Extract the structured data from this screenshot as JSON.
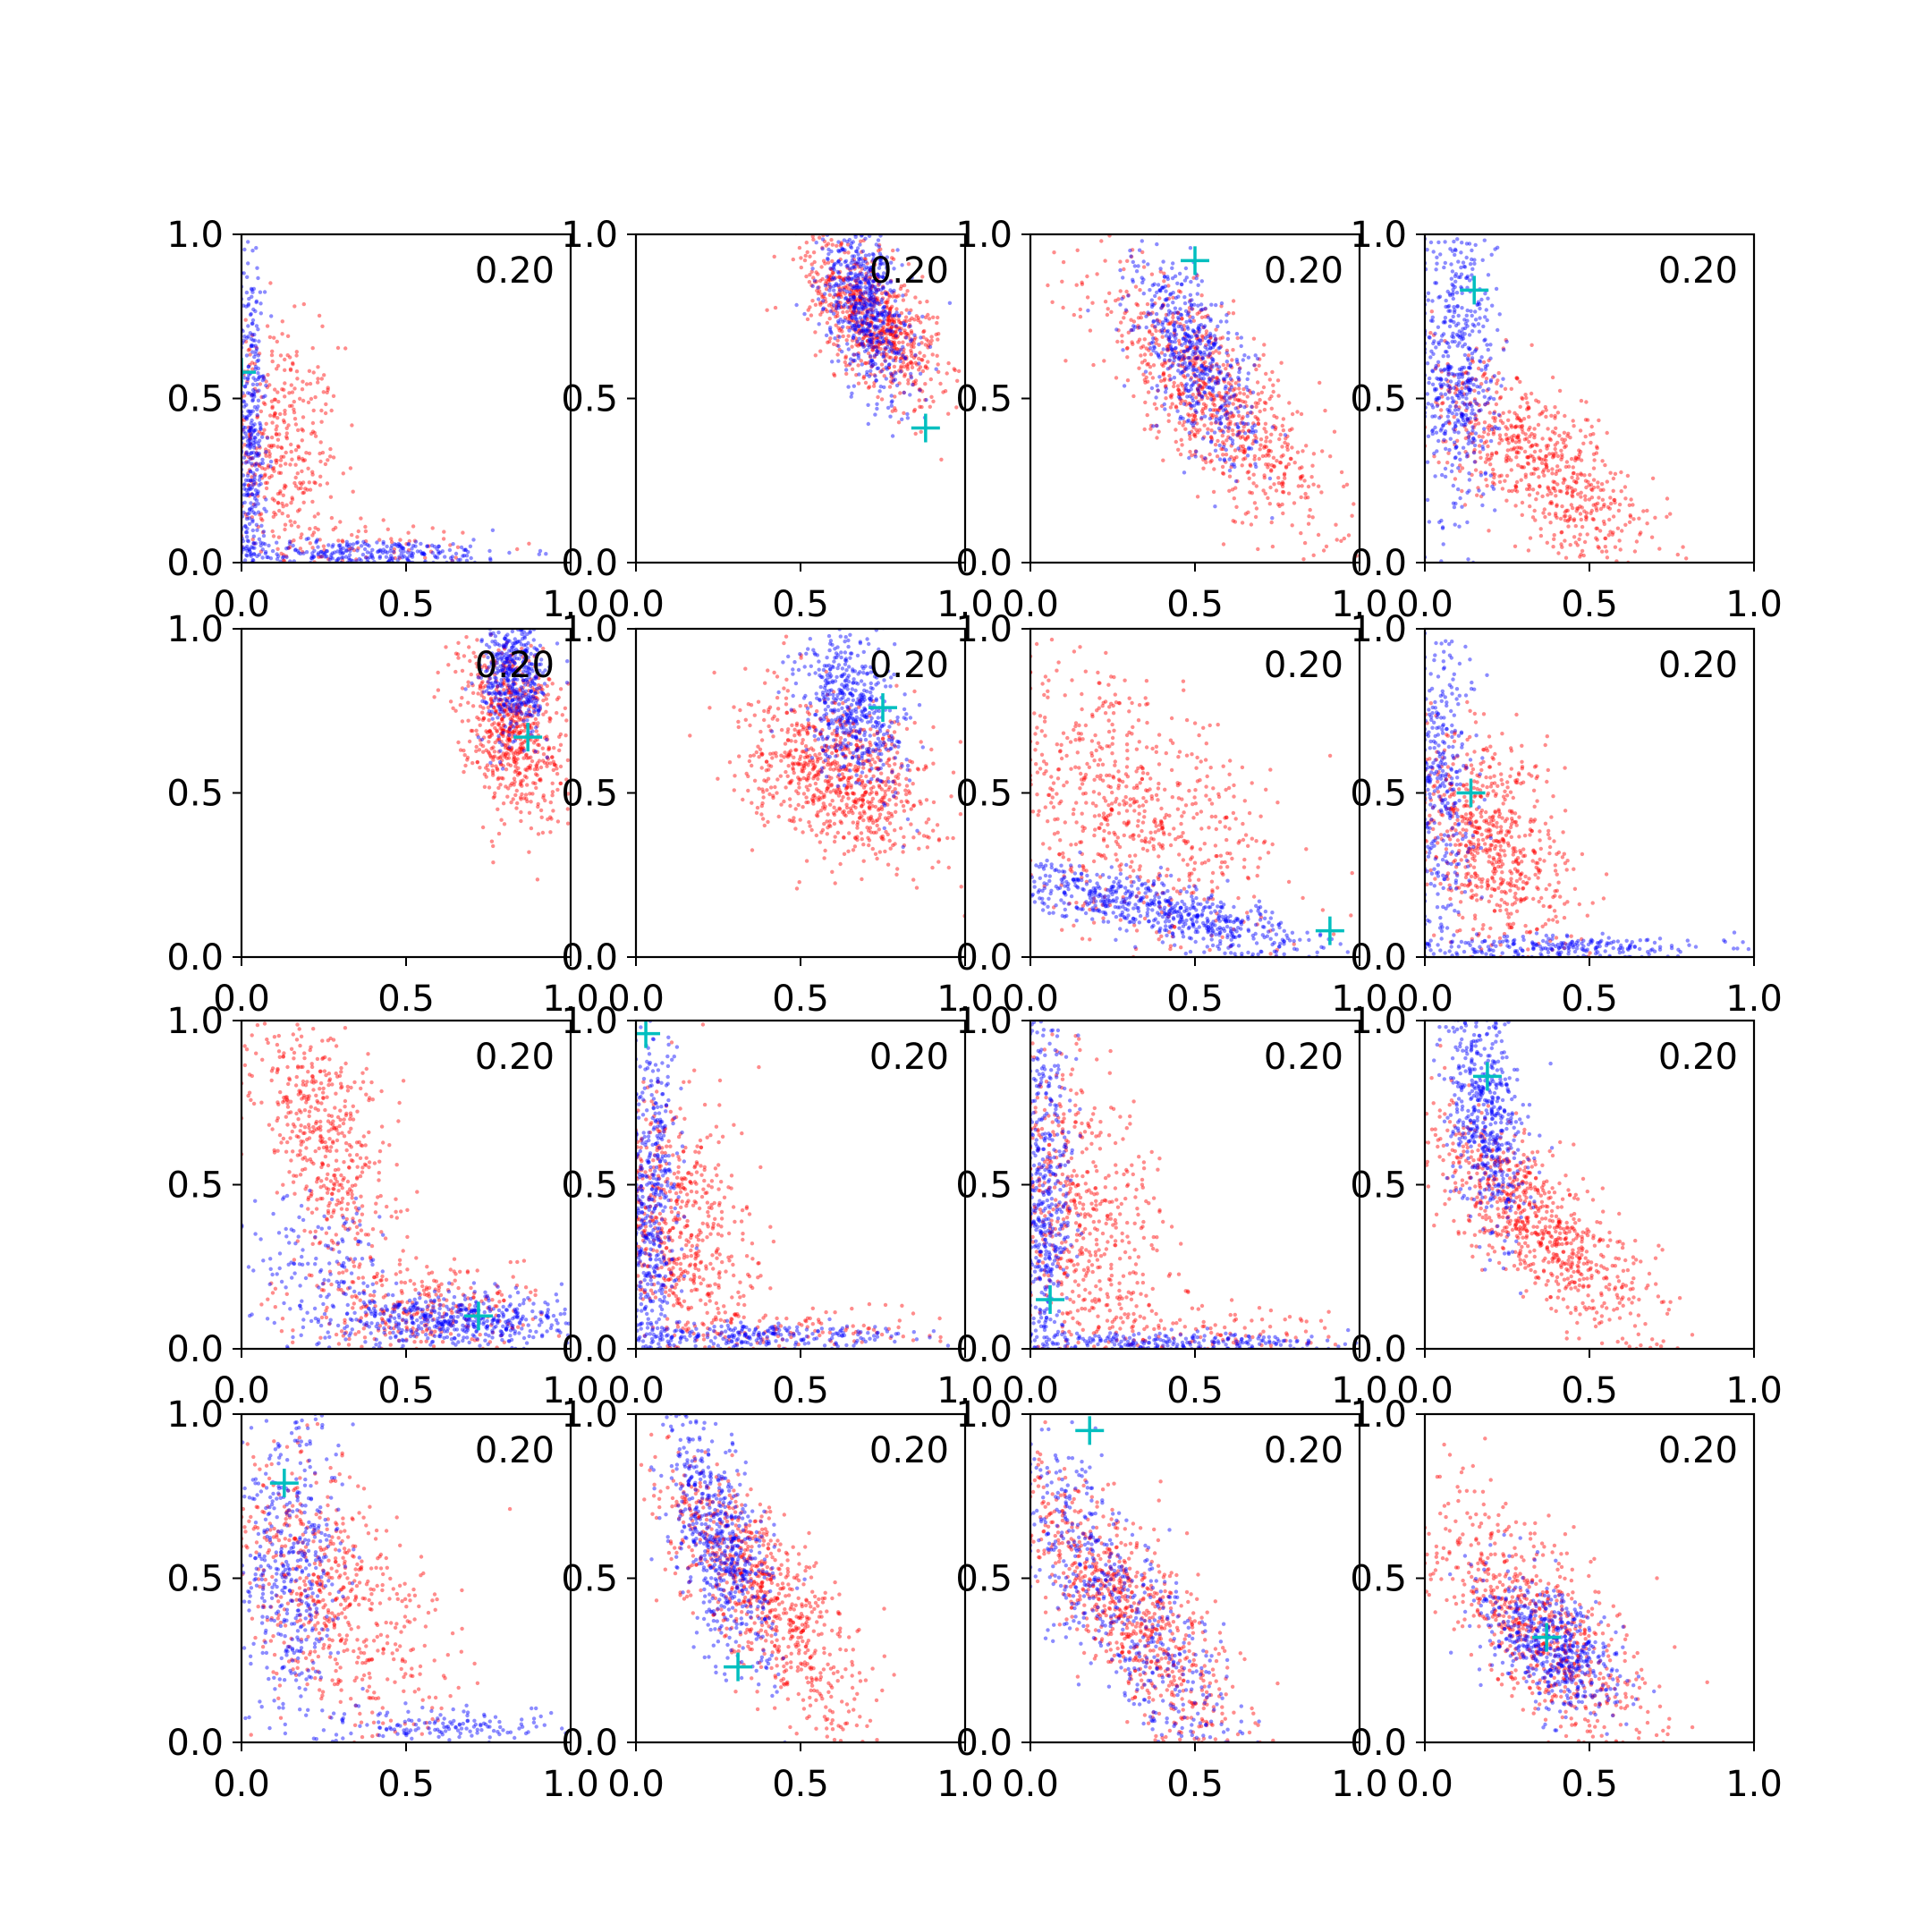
{
  "chart_data": {
    "type": "scatter",
    "layout": "4x4 grid of scatter subplots",
    "xlim": [
      0,
      1
    ],
    "ylim": [
      0,
      1
    ],
    "xticks": [
      "0.0",
      "0.5",
      "1.0"
    ],
    "yticks": [
      "0.0",
      "0.5",
      "1.0"
    ],
    "grid": false,
    "legend": "none",
    "colors": {
      "set_a": "#ff0000",
      "set_b": "#0000ff",
      "marker": "#00bfbf"
    },
    "panels": [
      {
        "annotation": "0.20",
        "marker": {
          "x": 0.0,
          "y": 0.58
        },
        "red": [
          {
            "x": 0.1,
            "y": 0.35,
            "sx": 0.1,
            "sy": 0.2,
            "rho": -0.2,
            "n": 450
          },
          {
            "x": 0.45,
            "y": 0.05,
            "sx": 0.22,
            "sy": 0.04,
            "n": 60
          }
        ],
        "blue": [
          {
            "x": 0.03,
            "y": 0.35,
            "sx": 0.02,
            "sy": 0.3,
            "n": 380
          },
          {
            "x": 0.35,
            "y": 0.03,
            "sx": 0.25,
            "sy": 0.02,
            "n": 300
          }
        ]
      },
      {
        "annotation": "0.20",
        "marker": {
          "x": 0.88,
          "y": 0.41
        },
        "red": [
          {
            "x": 0.72,
            "y": 0.74,
            "sx": 0.1,
            "sy": 0.12,
            "rho": -0.6,
            "n": 750
          }
        ],
        "blue": [
          {
            "x": 0.7,
            "y": 0.78,
            "sx": 0.07,
            "sy": 0.14,
            "rho": -0.5,
            "n": 600
          }
        ]
      },
      {
        "annotation": "0.20",
        "marker": {
          "x": 0.5,
          "y": 0.92
        },
        "red": [
          {
            "x": 0.55,
            "y": 0.5,
            "sx": 0.18,
            "sy": 0.2,
            "rho": -0.8,
            "n": 800
          }
        ],
        "blue": [
          {
            "x": 0.5,
            "y": 0.62,
            "sx": 0.09,
            "sy": 0.15,
            "rho": -0.6,
            "n": 550
          }
        ]
      },
      {
        "annotation": "0.20",
        "marker": {
          "x": 0.15,
          "y": 0.83
        },
        "red": [
          {
            "x": 0.35,
            "y": 0.3,
            "sx": 0.18,
            "sy": 0.17,
            "rho": -0.75,
            "n": 700
          }
        ],
        "blue": [
          {
            "x": 0.1,
            "y": 0.6,
            "sx": 0.06,
            "sy": 0.25,
            "n": 550
          }
        ]
      },
      {
        "annotation": "0.20",
        "marker": {
          "x": 0.87,
          "y": 0.67
        },
        "red": [
          {
            "x": 0.82,
            "y": 0.7,
            "sx": 0.08,
            "sy": 0.13,
            "rho": -0.3,
            "n": 650
          }
        ],
        "blue": [
          {
            "x": 0.83,
            "y": 0.85,
            "sx": 0.05,
            "sy": 0.1,
            "n": 450
          }
        ]
      },
      {
        "annotation": "0.20",
        "marker": {
          "x": 0.75,
          "y": 0.76
        },
        "red": [
          {
            "x": 0.62,
            "y": 0.55,
            "sx": 0.14,
            "sy": 0.12,
            "rho": -0.3,
            "n": 800
          }
        ],
        "blue": [
          {
            "x": 0.66,
            "y": 0.76,
            "sx": 0.08,
            "sy": 0.12,
            "rho": -0.3,
            "n": 500
          }
        ]
      },
      {
        "annotation": "0.20",
        "marker": {
          "x": 0.91,
          "y": 0.08
        },
        "red": [
          {
            "x": 0.3,
            "y": 0.45,
            "sx": 0.22,
            "sy": 0.22,
            "rho": -0.5,
            "n": 700
          }
        ],
        "blue": [
          {
            "x": 0.4,
            "y": 0.14,
            "sx": 0.25,
            "sy": 0.07,
            "rho": -0.8,
            "n": 650
          }
        ]
      },
      {
        "annotation": "0.20",
        "marker": {
          "x": 0.14,
          "y": 0.5
        },
        "red": [
          {
            "x": 0.2,
            "y": 0.35,
            "sx": 0.12,
            "sy": 0.18,
            "rho": -0.4,
            "n": 700
          }
        ],
        "blue": [
          {
            "x": 0.05,
            "y": 0.55,
            "sx": 0.05,
            "sy": 0.28,
            "n": 400
          },
          {
            "x": 0.4,
            "y": 0.03,
            "sx": 0.25,
            "sy": 0.02,
            "n": 250
          }
        ]
      },
      {
        "annotation": "0.20",
        "marker": {
          "x": 0.72,
          "y": 0.1
        },
        "red": [
          {
            "x": 0.25,
            "y": 0.65,
            "sx": 0.1,
            "sy": 0.2,
            "rho": -0.5,
            "n": 500
          },
          {
            "x": 0.55,
            "y": 0.12,
            "sx": 0.2,
            "sy": 0.07,
            "n": 300
          }
        ],
        "blue": [
          {
            "x": 0.65,
            "y": 0.09,
            "sx": 0.2,
            "sy": 0.04,
            "n": 500
          },
          {
            "x": 0.25,
            "y": 0.25,
            "sx": 0.1,
            "sy": 0.12,
            "n": 150
          }
        ]
      },
      {
        "annotation": "0.20",
        "marker": {
          "x": 0.03,
          "y": 0.96
        },
        "red": [
          {
            "x": 0.12,
            "y": 0.35,
            "sx": 0.12,
            "sy": 0.22,
            "rho": -0.3,
            "n": 650
          },
          {
            "x": 0.55,
            "y": 0.05,
            "sx": 0.25,
            "sy": 0.04,
            "n": 100
          }
        ],
        "blue": [
          {
            "x": 0.05,
            "y": 0.4,
            "sx": 0.04,
            "sy": 0.3,
            "n": 500
          },
          {
            "x": 0.35,
            "y": 0.04,
            "sx": 0.25,
            "sy": 0.02,
            "n": 250
          }
        ]
      },
      {
        "annotation": "0.20",
        "marker": {
          "x": 0.06,
          "y": 0.15
        },
        "red": [
          {
            "x": 0.15,
            "y": 0.4,
            "sx": 0.14,
            "sy": 0.25,
            "rho": -0.3,
            "n": 650
          },
          {
            "x": 0.55,
            "y": 0.05,
            "sx": 0.22,
            "sy": 0.04,
            "n": 120
          }
        ],
        "blue": [
          {
            "x": 0.04,
            "y": 0.45,
            "sx": 0.04,
            "sy": 0.3,
            "n": 500
          },
          {
            "x": 0.4,
            "y": 0.02,
            "sx": 0.3,
            "sy": 0.015,
            "n": 250
          }
        ]
      },
      {
        "annotation": "0.20",
        "marker": {
          "x": 0.19,
          "y": 0.83
        },
        "red": [
          {
            "x": 0.35,
            "y": 0.38,
            "sx": 0.18,
            "sy": 0.18,
            "rho": -0.8,
            "n": 800
          }
        ],
        "blue": [
          {
            "x": 0.18,
            "y": 0.72,
            "sx": 0.06,
            "sy": 0.18,
            "rho": -0.4,
            "n": 550
          }
        ]
      },
      {
        "annotation": "0.20",
        "marker": {
          "x": 0.13,
          "y": 0.79
        },
        "red": [
          {
            "x": 0.25,
            "y": 0.45,
            "sx": 0.18,
            "sy": 0.22,
            "rho": -0.5,
            "n": 650
          }
        ],
        "blue": [
          {
            "x": 0.15,
            "y": 0.55,
            "sx": 0.08,
            "sy": 0.25,
            "n": 450
          },
          {
            "x": 0.6,
            "y": 0.05,
            "sx": 0.2,
            "sy": 0.03,
            "n": 150
          }
        ]
      },
      {
        "annotation": "0.20",
        "marker": {
          "x": 0.31,
          "y": 0.23
        },
        "red": [
          {
            "x": 0.38,
            "y": 0.45,
            "sx": 0.15,
            "sy": 0.2,
            "rho": -0.75,
            "n": 800
          }
        ],
        "blue": [
          {
            "x": 0.25,
            "y": 0.6,
            "sx": 0.08,
            "sy": 0.2,
            "rho": -0.6,
            "n": 600
          }
        ]
      },
      {
        "annotation": "0.20",
        "marker": {
          "x": 0.18,
          "y": 0.95
        },
        "red": [
          {
            "x": 0.3,
            "y": 0.4,
            "sx": 0.17,
            "sy": 0.22,
            "rho": -0.8,
            "n": 800
          }
        ],
        "blue": [
          {
            "x": 0.25,
            "y": 0.45,
            "sx": 0.2,
            "sy": 0.28,
            "rho": -0.85,
            "n": 600
          }
        ]
      },
      {
        "annotation": "0.20",
        "marker": {
          "x": 0.37,
          "y": 0.32
        },
        "red": [
          {
            "x": 0.35,
            "y": 0.35,
            "sx": 0.18,
            "sy": 0.2,
            "rho": -0.75,
            "n": 750
          }
        ],
        "blue": [
          {
            "x": 0.38,
            "y": 0.3,
            "sx": 0.1,
            "sy": 0.1,
            "rho": -0.5,
            "n": 550
          }
        ]
      }
    ]
  }
}
